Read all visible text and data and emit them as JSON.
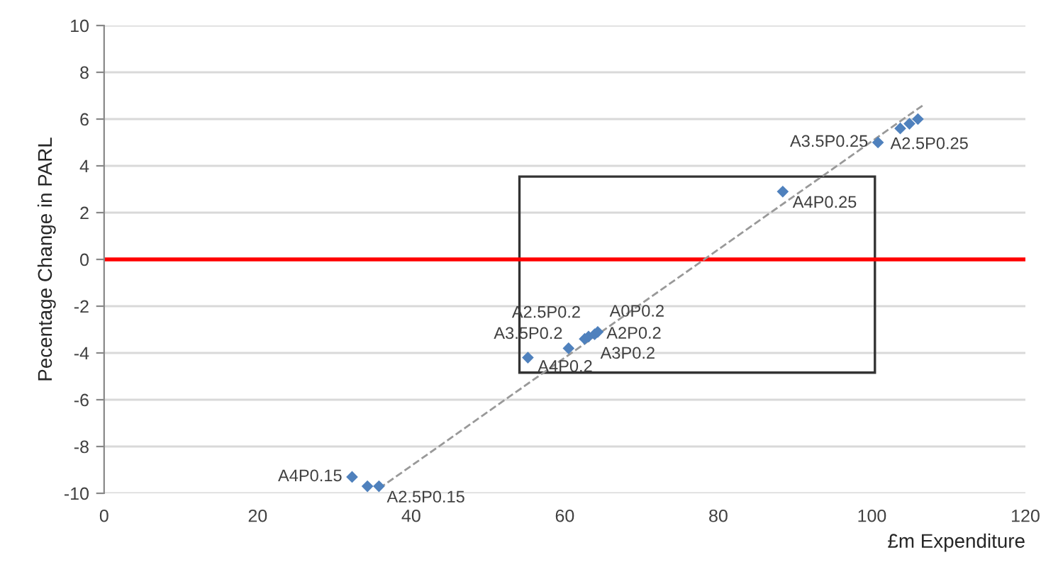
{
  "chart_data": {
    "type": "scatter",
    "xlabel": "£m Expenditure",
    "ylabel": "Pecentage Change in PARL",
    "xlim": [
      0,
      120
    ],
    "xticks": [
      0,
      20,
      40,
      60,
      80,
      100,
      120
    ],
    "ylim": [
      -10,
      10
    ],
    "yticks": [
      -10,
      -8,
      -6,
      -4,
      -2,
      0,
      2,
      4,
      6,
      8,
      10
    ],
    "grid": "y",
    "series": [
      {
        "color": "#4f81bd",
        "marker": "diamond",
        "x": [
          32.3,
          34.3,
          35.8,
          55.2,
          60.5,
          62.6,
          63.1,
          63.9,
          64.3,
          88.4,
          100.8,
          103.7,
          104.9,
          106.0
        ],
        "values": [
          -9.3,
          -9.7,
          -9.7,
          -4.2,
          -3.8,
          -3.4,
          -3.3,
          -3.2,
          -3.1,
          2.9,
          5.0,
          5.6,
          5.8,
          6.0
        ]
      },
      {
        "type": "line",
        "color": "#999999",
        "line_style": "dashed",
        "x": [
          35.8,
          106.7
        ],
        "values": [
          -9.8,
          6.6
        ]
      }
    ],
    "ref_lines": [
      {
        "axis": "y",
        "value": 0,
        "color": "#ff0000"
      }
    ],
    "annotations": [
      {
        "text": "A4P0.15",
        "x": 32.3,
        "y": -9.3
      },
      {
        "text": "A2.5P0.15",
        "x": 35.8,
        "y": -9.7
      },
      {
        "text": "A4P0.2",
        "x": 55.2,
        "y": -4.2
      },
      {
        "text": "A3.5P0.2",
        "x": 60.5,
        "y": -3.8
      },
      {
        "text": "A2.5P0.2",
        "x": 62.6,
        "y": -3.4
      },
      {
        "text": "A3P0.2",
        "x": 63.1,
        "y": -3.3
      },
      {
        "text": "A2P0.2",
        "x": 63.9,
        "y": -3.2
      },
      {
        "text": "A0P0.2",
        "x": 64.3,
        "y": -3.1
      },
      {
        "text": "A4P0.25",
        "x": 88.4,
        "y": 2.9
      },
      {
        "text": "A3.5P0.25",
        "x": 100.8,
        "y": 5.0
      },
      {
        "text": "A2.5P0.25",
        "x": 106.0,
        "y": 6.0
      }
    ]
  }
}
